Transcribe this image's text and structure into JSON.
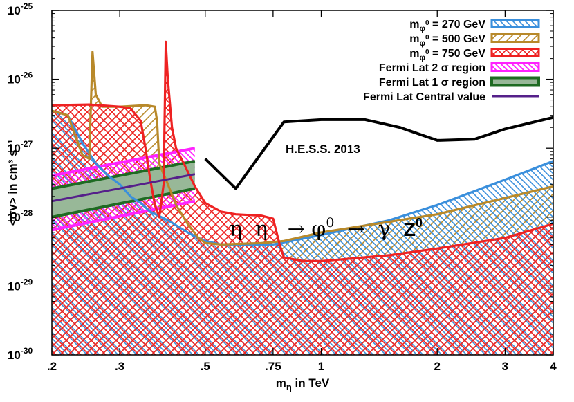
{
  "chart_data": {
    "type": "line",
    "xlabel": "m_η in TeV",
    "ylabel": "<σv> in cm³ s⁻¹",
    "xscale": "log",
    "yscale": "log",
    "xlim": [
      0.2,
      4
    ],
    "ylim": [
      1e-30,
      1e-25
    ],
    "x_ticks": [
      {
        "value": 0.2,
        "label": ".2"
      },
      {
        "value": 0.3,
        "label": ".3"
      },
      {
        "value": 0.5,
        "label": ".5"
      },
      {
        "value": 0.75,
        "label": ".75"
      },
      {
        "value": 1,
        "label": "1"
      },
      {
        "value": 2,
        "label": "2"
      },
      {
        "value": 3,
        "label": "3"
      },
      {
        "value": 4,
        "label": "4"
      }
    ],
    "y_ticks": [
      {
        "value": 1e-30,
        "base": "10",
        "exp": "-30"
      },
      {
        "value": 1e-29,
        "base": "10",
        "exp": "-29"
      },
      {
        "value": 1e-28,
        "base": "10",
        "exp": "-28"
      },
      {
        "value": 1e-27,
        "base": "10",
        "exp": "-27"
      },
      {
        "value": 1e-26,
        "base": "10",
        "exp": "-26"
      },
      {
        "value": 1e-25,
        "base": "10",
        "exp": "-25"
      }
    ],
    "legend_position": "top-right",
    "legend": [
      {
        "label": "m_φ⁰ = 270 GeV",
        "color": "#3a8fdc",
        "style": "hatch-back"
      },
      {
        "label": "m_φ⁰ = 500 GeV",
        "color": "#b8892a",
        "style": "hatch-forward"
      },
      {
        "label": "m_φ⁰ = 750 GeV",
        "color": "#ee2222",
        "style": "hatch-back"
      },
      {
        "label": "Fermi Lat 2 σ region",
        "color": "#ff22ff",
        "style": "hatch-back"
      },
      {
        "label": "Fermi Lat 1 σ region",
        "color": "#1e6b22",
        "style": "filled"
      },
      {
        "label": "Fermi Lat Central value",
        "color": "#55208a",
        "style": "line"
      }
    ],
    "series": [
      {
        "name": "m_φ⁰ = 270 GeV",
        "color": "#3a8fdc",
        "points": [
          [
            0.2,
            3.5e-27
          ],
          [
            0.22,
            3e-27
          ],
          [
            0.24,
            1.2e-27
          ],
          [
            0.26,
            6e-28
          ],
          [
            0.28,
            4e-28
          ],
          [
            0.3,
            3e-28
          ],
          [
            0.32,
            2e-28
          ],
          [
            0.34,
            1.6e-28
          ],
          [
            0.36,
            1.2e-28
          ],
          [
            0.4,
            9e-29
          ],
          [
            0.45,
            6e-29
          ],
          [
            0.48,
            5e-29
          ],
          [
            0.5,
            4.5e-29
          ],
          [
            0.55,
            4e-29
          ],
          [
            0.65,
            4e-29
          ],
          [
            0.75,
            4e-29
          ],
          [
            0.8,
            4.3e-29
          ],
          [
            1,
            5.5e-29
          ],
          [
            1.5,
            9e-29
          ],
          [
            2,
            1.5e-28
          ],
          [
            3,
            3.5e-28
          ],
          [
            4,
            6.5e-28
          ]
        ]
      },
      {
        "name": "m_φ⁰ = 500 GeV",
        "color": "#b8892a",
        "points": [
          [
            0.2,
            3.5e-27
          ],
          [
            0.22,
            3e-27
          ],
          [
            0.24,
            8e-28
          ],
          [
            0.25,
            7e-28
          ],
          [
            0.255,
            2.5e-26
          ],
          [
            0.26,
            6e-27
          ],
          [
            0.27,
            4e-27
          ],
          [
            0.3,
            4e-27
          ],
          [
            0.35,
            4.2e-27
          ],
          [
            0.37,
            4e-27
          ],
          [
            0.375,
            2.5e-27
          ],
          [
            0.38,
            6e-28
          ],
          [
            0.4,
            3e-28
          ],
          [
            0.42,
            1.5e-28
          ],
          [
            0.45,
            8e-29
          ],
          [
            0.48,
            5e-29
          ],
          [
            0.5,
            4.2e-29
          ],
          [
            0.55,
            4e-29
          ],
          [
            0.7,
            4.2e-29
          ],
          [
            0.8,
            4.5e-29
          ],
          [
            1,
            6e-29
          ],
          [
            2,
            1.1e-28
          ],
          [
            4,
            2.8e-28
          ]
        ]
      },
      {
        "name": "m_φ⁰ = 750 GeV",
        "color": "#ee2222",
        "points": [
          [
            0.2,
            4.2e-27
          ],
          [
            0.25,
            4.3e-27
          ],
          [
            0.3,
            4e-27
          ],
          [
            0.32,
            3.8e-27
          ],
          [
            0.34,
            2.5e-27
          ],
          [
            0.35,
            1e-27
          ],
          [
            0.36,
            3.5e-28
          ],
          [
            0.37,
            1.5e-28
          ],
          [
            0.38,
            1e-28
          ],
          [
            0.39,
            3e-28
          ],
          [
            0.395,
            3.5e-26
          ],
          [
            0.4,
            1e-26
          ],
          [
            0.41,
            2e-27
          ],
          [
            0.42,
            1e-27
          ],
          [
            0.44,
            6e-28
          ],
          [
            0.47,
            2.8e-28
          ],
          [
            0.5,
            1.6e-28
          ],
          [
            0.55,
            1.2e-28
          ],
          [
            0.6,
            1.1e-28
          ],
          [
            0.7,
            1.05e-28
          ],
          [
            0.75,
            9.5e-29
          ],
          [
            0.78,
            4e-29
          ],
          [
            0.8,
            2.6e-29
          ],
          [
            0.9,
            2.3e-29
          ],
          [
            1,
            2.3e-29
          ],
          [
            1.5,
            2.8e-29
          ],
          [
            2,
            3.5e-29
          ],
          [
            3,
            5e-29
          ],
          [
            4,
            8e-29
          ]
        ]
      },
      {
        "name": "H.E.S.S. 2013",
        "color": "#000000",
        "points": [
          [
            0.5,
            7e-28
          ],
          [
            0.6,
            2.6e-28
          ],
          [
            0.8,
            2.4e-27
          ],
          [
            1,
            2.6e-27
          ],
          [
            1.3,
            2.6e-27
          ],
          [
            1.6,
            2e-27
          ],
          [
            2,
            1.3e-27
          ],
          [
            2.5,
            1.35e-27
          ],
          [
            3,
            1.9e-27
          ],
          [
            4,
            2.8e-27
          ]
        ]
      },
      {
        "name": "Fermi Lat Central value",
        "color": "#55208a",
        "points": [
          [
            0.2,
            1.7e-28
          ],
          [
            0.47,
            4.2e-28
          ]
        ]
      }
    ],
    "bands": [
      {
        "name": "Fermi Lat 2 σ region",
        "color": "#ff22ff",
        "lower": [
          [
            0.2,
            6.5e-29
          ],
          [
            0.47,
            1.7e-28
          ]
        ],
        "upper": [
          [
            0.2,
            4e-28
          ],
          [
            0.47,
            1e-27
          ]
        ]
      },
      {
        "name": "Fermi Lat 1 σ region",
        "color": "#1e6b22",
        "lower": [
          [
            0.2,
            1e-28
          ],
          [
            0.47,
            2.6e-28
          ]
        ],
        "upper": [
          [
            0.2,
            2.6e-28
          ],
          [
            0.47,
            6.5e-28
          ]
        ]
      }
    ],
    "annotations": [
      {
        "name": "hess-label",
        "text": "H.E.S.S. 2013",
        "x": 0.8,
        "y": 1.1e-27
      },
      {
        "name": "process-label",
        "text": "η  η  → φ⁰  → γ  Z⁰",
        "x": 0.52,
        "y": 1e-28
      }
    ]
  }
}
